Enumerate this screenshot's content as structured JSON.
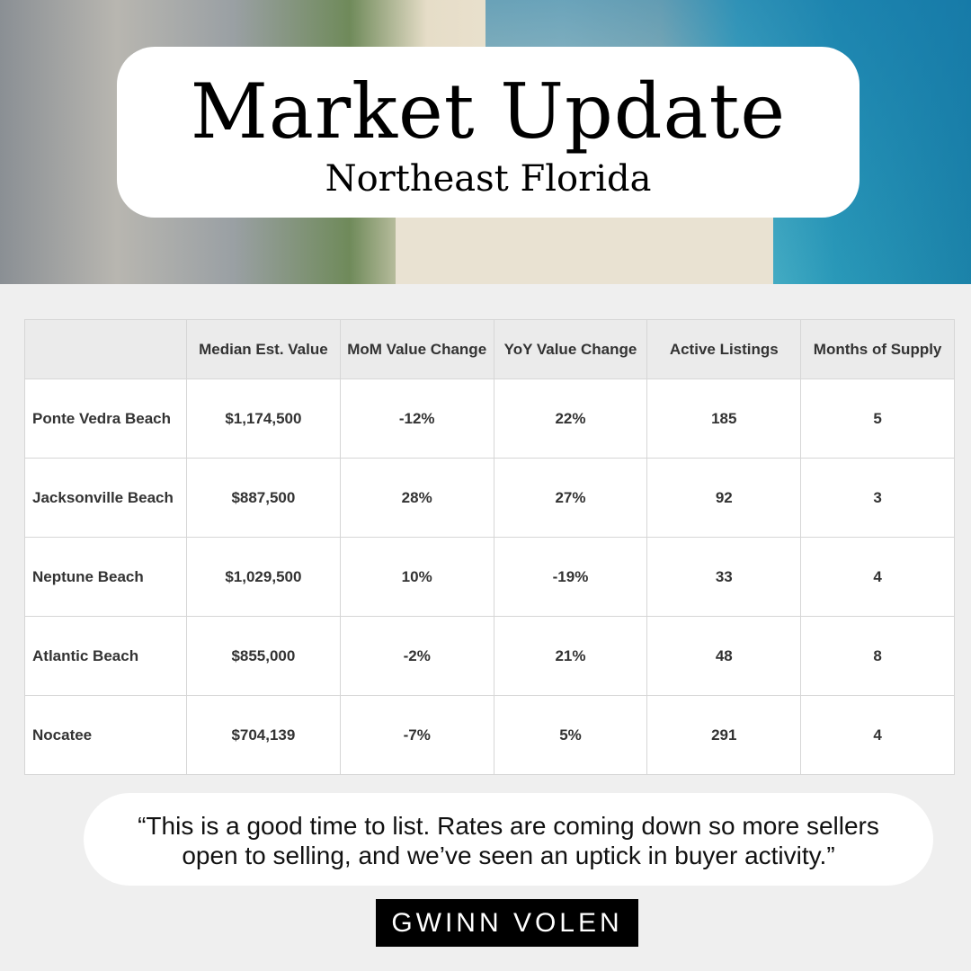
{
  "header": {
    "title": "Market Update",
    "subtitle": "Northeast Florida"
  },
  "table": {
    "columns": [
      "",
      "Median Est. Value",
      "MoM Value Change",
      "YoY Value Change",
      "Active Listings",
      "Months of Supply"
    ],
    "rows": [
      [
        "Ponte Vedra Beach",
        "$1,174,500",
        "-12%",
        "22%",
        "185",
        "5"
      ],
      [
        "Jacksonville Beach",
        "$887,500",
        "28%",
        "27%",
        "92",
        "3"
      ],
      [
        "Neptune Beach",
        "$1,029,500",
        "10%",
        "-19%",
        "33",
        "4"
      ],
      [
        "Atlantic Beach",
        "$855,000",
        "-2%",
        "21%",
        "48",
        "8"
      ],
      [
        "Nocatee",
        "$704,139",
        "-7%",
        "5%",
        "291",
        "4"
      ]
    ]
  },
  "quote": {
    "line1": "“This is a good time to list. Rates are coming down so more sellers",
    "line2": "open to selling, and we’ve seen an uptick in buyer activity.”"
  },
  "signature": "GWINN VOLEN"
}
